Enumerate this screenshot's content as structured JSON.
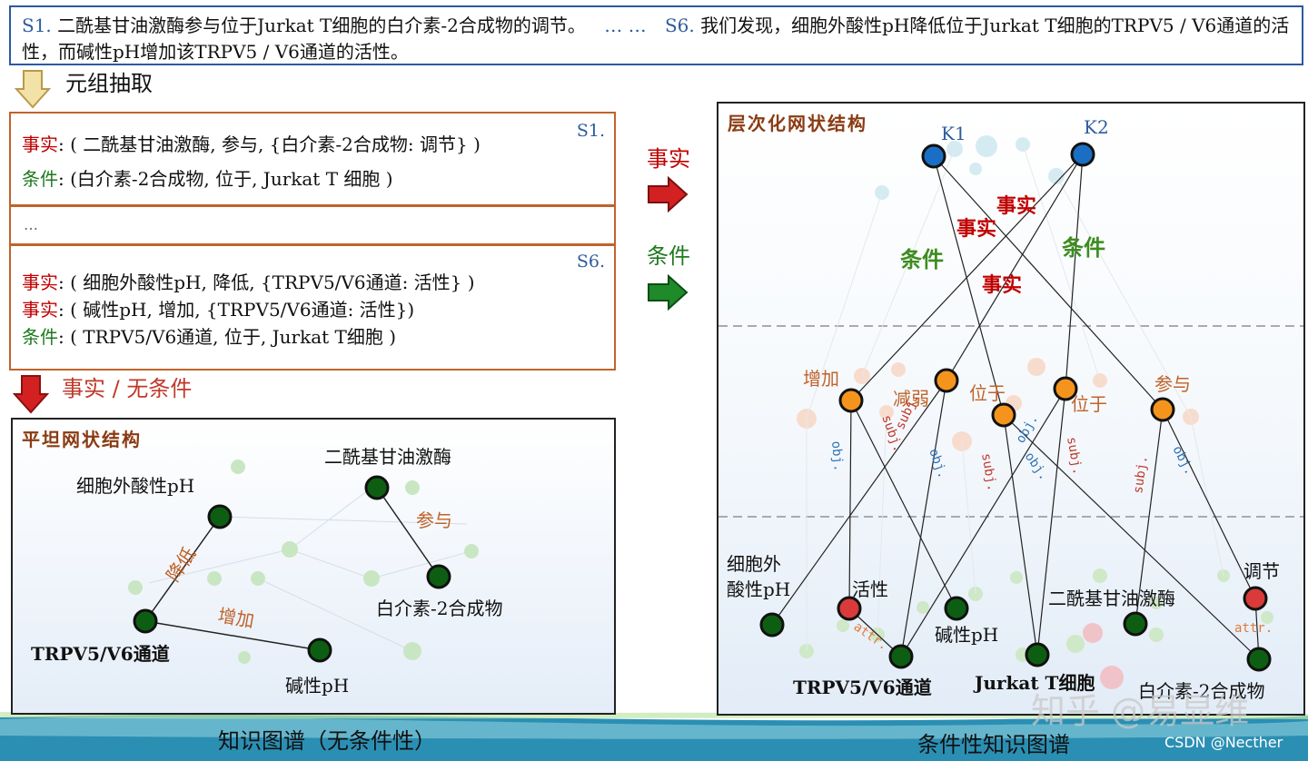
{
  "top_sentences": {
    "s1_tag": "S1.",
    "s1_text": "二酰基甘油激酶参与位于Jurkat T细胞的白介素-2合成物的调节。",
    "ellipsis": "… …",
    "s6_tag": "S6.",
    "s6_text": "我们发现，细胞外酸性pH降低位于Jurkat T细胞的TRPV5 / V6通道的活性，而碱性pH增加该TRPV5 / V6通道的活性。"
  },
  "extraction_label": "元组抽取",
  "tuples": {
    "s1": {
      "tag": "S1.",
      "fact_prefix": "事实",
      "fact_text": ": ( 二酰基甘油激酶,  参与, {白介素-2合成物: 调节} )",
      "cond_prefix": "条件",
      "cond_text": ": (白介素-2合成物, 位于, Jurkat T 细胞 )"
    },
    "middle": "…",
    "s6": {
      "tag": "S6.",
      "fact1_prefix": "事实",
      "fact1_text": ": ( 细胞外酸性pH, 降低, {TRPV5/V6通道: 活性} )",
      "fact2_prefix": "事实",
      "fact2_text": ": ( 碱性pH, 增加, {TRPV5/V6通道: 活性})",
      "cond_prefix": "条件",
      "cond_text": ": ( TRPV5/V6通道, 位于, Jurkat T细胞 )"
    }
  },
  "no_condition_label": "事实 / 无条件",
  "flat_panel": {
    "title": "平坦网状结构",
    "nodes": {
      "acid_ph": "细胞外酸性pH",
      "dgk": "二酰基甘油激酶",
      "il2": "白介素-2合成物",
      "trpv": "TRPV5/V6通道",
      "alk_ph": "碱性pH"
    },
    "edges": {
      "decrease": "降低",
      "participate": "参与",
      "increase": "增加"
    }
  },
  "arrows": {
    "fact": "事实",
    "condition": "条件"
  },
  "hier_panel": {
    "title": "层次化网状结构",
    "k1": "K1",
    "k2": "K2",
    "top_labels": {
      "fact_a": "事实",
      "fact_b": "事实",
      "fact_c": "事实",
      "cond_a": "条件",
      "cond_b": "条件"
    },
    "mid_labels": {
      "increase": "增加",
      "weaken": "减弱",
      "locate1": "位于",
      "locate2": "位于",
      "participate": "参与"
    },
    "rel_labels": {
      "obj": "obj.",
      "subj": "subj.",
      "attr": "attr."
    },
    "bottom_labels": {
      "acid_ph_l1": "细胞外",
      "acid_ph_l2": "酸性pH",
      "activity": "活性",
      "alk_ph": "碱性pH",
      "trpv": "TRPV5/V6通道",
      "jurkat": "Jurkat T细胞",
      "dgk": "二酰基甘油激酶",
      "regulate": "调节",
      "il2": "白介素-2合成物"
    }
  },
  "captions": {
    "left": "知识图谱（无条件性）",
    "right": "条件性知识图谱"
  },
  "watermark": "知乎 @易显维",
  "credit": "CSDN @Necther",
  "colors": {
    "node_green": "#0d5e12",
    "node_blue": "#1a6fc4",
    "node_orange": "#f5941d",
    "node_red": "#d93a3a",
    "fact_red": "#c00000",
    "cond_green": "#1f7a1f"
  }
}
